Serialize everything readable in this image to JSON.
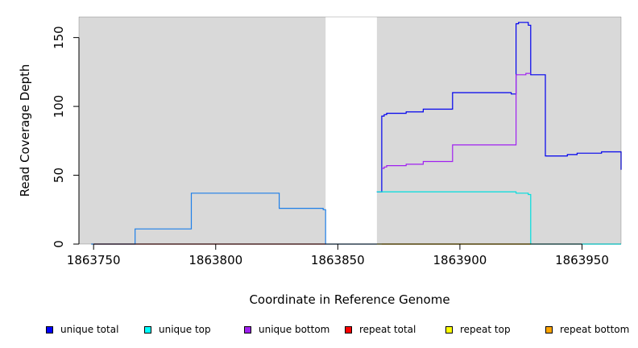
{
  "chart_data": {
    "type": "line",
    "xlabel": "Coordinate in Reference Genome",
    "ylabel": "Read Coverage Depth",
    "xlim": [
      1863744,
      1863966
    ],
    "ylim": [
      0,
      165
    ],
    "x_ticks": [
      1863750,
      1863800,
      1863850,
      1863900,
      1863950
    ],
    "y_ticks": [
      0,
      50,
      100,
      150
    ],
    "x_tick_labels": [
      "1863750",
      "1863800",
      "1863850",
      "1863900",
      "1863950"
    ],
    "y_tick_labels": [
      "0",
      "50",
      "100",
      "150"
    ],
    "background": "#d9d9d9",
    "gap_regions": [
      [
        1863845,
        1863866
      ]
    ],
    "series": [
      {
        "name": "unique total",
        "color": "#0000ee",
        "step": true,
        "x": [
          1863866,
          1863868,
          1863869,
          1863870,
          1863878,
          1863885,
          1863897,
          1863921,
          1863923,
          1863924,
          1863928,
          1863929,
          1863935,
          1863944,
          1863948,
          1863958,
          1863966
        ],
        "y": [
          38,
          93,
          94,
          95,
          96,
          98,
          110,
          109,
          160,
          161,
          159,
          123,
          64,
          65,
          66,
          67,
          54
        ]
      },
      {
        "name": "unique top",
        "color": "#00dddd",
        "step": true,
        "x": [
          1863866,
          1863868,
          1863922,
          1863923,
          1863928,
          1863929,
          1863966
        ],
        "y": [
          38,
          38,
          38,
          37,
          36,
          0,
          0
        ]
      },
      {
        "name": "unique bottom",
        "color": "#a020f0",
        "step": true,
        "x": [
          1863868,
          1863869,
          1863870,
          1863878,
          1863885,
          1863897,
          1863922,
          1863923,
          1863927,
          1863929
        ],
        "y": [
          55,
          56,
          57,
          58,
          60,
          72,
          72,
          123,
          124,
          124
        ]
      },
      {
        "name": "repeat total",
        "color": "#ee0000",
        "step": true,
        "x": [
          1863750,
          1863845
        ],
        "y": [
          0,
          0
        ]
      },
      {
        "name": "repeat top",
        "color": "#eeee00",
        "step": true,
        "x": [
          1863866,
          1863929
        ],
        "y": [
          0,
          0
        ]
      },
      {
        "name": "repeat bottom",
        "color": "#ffa500",
        "step": true,
        "x": [
          1863868,
          1863929
        ],
        "y": [
          0,
          0
        ]
      },
      {
        "name": "",
        "color": "#1e7fe8",
        "step": true,
        "x": [
          1863749,
          1863767,
          1863790,
          1863826,
          1863844,
          1863845,
          1863866
        ],
        "y": [
          0,
          11,
          37,
          26,
          25,
          0,
          0
        ]
      }
    ],
    "legend": {
      "placement": "bottom",
      "items": [
        {
          "label": "unique total",
          "color": "#0000ff"
        },
        {
          "label": "unique top",
          "color": "#00ffff"
        },
        {
          "label": "unique bottom",
          "color": "#a020f0"
        },
        {
          "label": "repeat total",
          "color": "#ff0000"
        },
        {
          "label": "repeat top",
          "color": "#ffff00"
        },
        {
          "label": "repeat bottom",
          "color": "#ffa500"
        }
      ]
    }
  }
}
